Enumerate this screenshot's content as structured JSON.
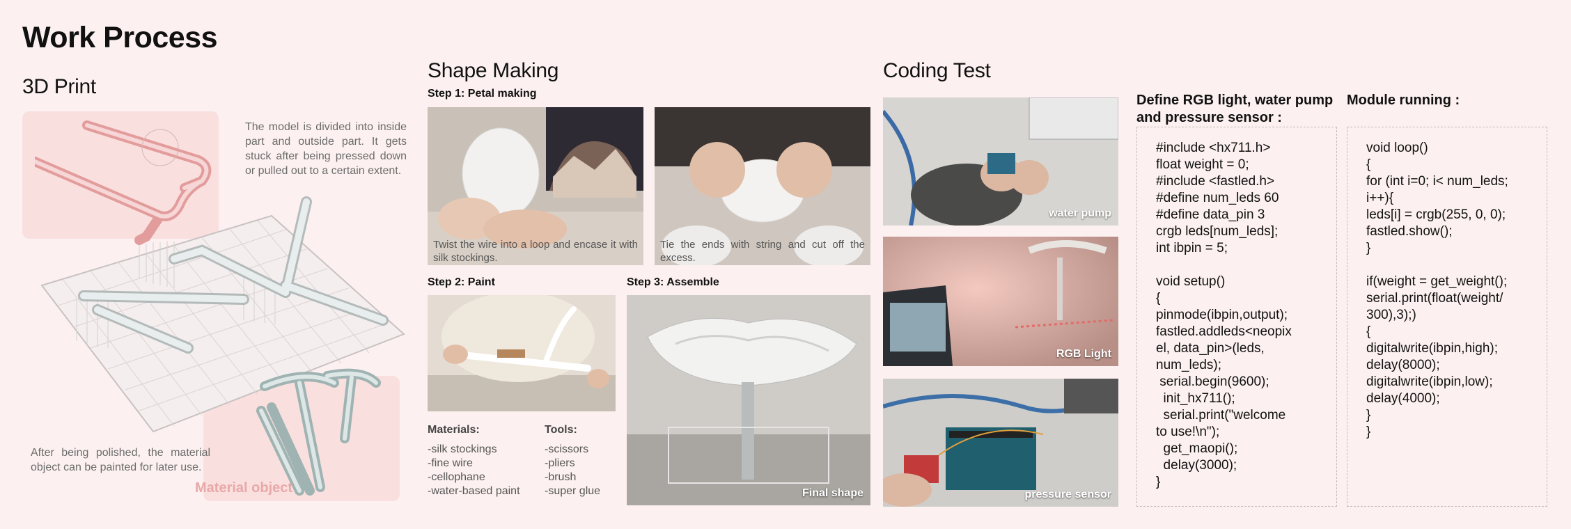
{
  "title": "Work Process",
  "print3d": {
    "heading": "3D Print",
    "desc": "The model is divided into inside part and outside part. It gets stuck after being pressed down or pulled out to a certain extent.",
    "polished": "After  being polished, the material object can be painted for later use.",
    "material_label": "Material object"
  },
  "shape": {
    "heading": "Shape Making",
    "step1": "Step 1: Petal making",
    "step1_cap_a": "Twist the wire into a loop and encase it with silk stockings.",
    "step1_cap_b": "Tie the ends with string and cut off the excess.",
    "step2": "Step 2: Paint",
    "step3": "Step 3: Assemble",
    "final_label": "Final shape",
    "materials_head": "Materials:",
    "materials": [
      "-silk stockings",
      "-fine wire",
      "-cellophane",
      "-water-based paint"
    ],
    "tools_head": "Tools:",
    "tools": [
      "-scissors",
      "-pliers",
      "-brush",
      "-super glue"
    ]
  },
  "coding": {
    "heading": "Coding Test",
    "photo_labels": [
      "water pump",
      "RGB Light",
      "pressure sensor"
    ],
    "define_title_1": "Define RGB light, water pump",
    "define_title_2": "and pressure sensor :",
    "module_title": "Module running :",
    "define_code": [
      "#include <hx711.h>",
      "float weight = 0;",
      "#include <fastled.h>",
      "#define num_leds 60",
      "#define data_pin 3",
      "crgb leds[num_leds];",
      "int ibpin = 5;",
      "",
      "void setup()",
      "{",
      "pinmode(ibpin,output);",
      "fastled.addleds<neopix",
      "el, data_pin>(leds,",
      "num_leds);",
      " serial.begin(9600);",
      "  init_hx711();",
      "  serial.print(\"welcome",
      "to use!\\n\");",
      "  get_maopi();",
      "  delay(3000);",
      "}"
    ],
    "module_code": [
      "void loop()",
      "{",
      "for (int i=0; i< num_leds;",
      "i++){",
      "leds[i] = crgb(255, 0, 0);",
      "fastled.show();",
      "}",
      "",
      "if(weight = get_weight();",
      "serial.print(float(weight/",
      "300),3);)",
      "{",
      "digitalwrite(ibpin,high);",
      "delay(8000);",
      "digitalwrite(ibpin,low);",
      "delay(4000);",
      "}",
      "}"
    ]
  }
}
